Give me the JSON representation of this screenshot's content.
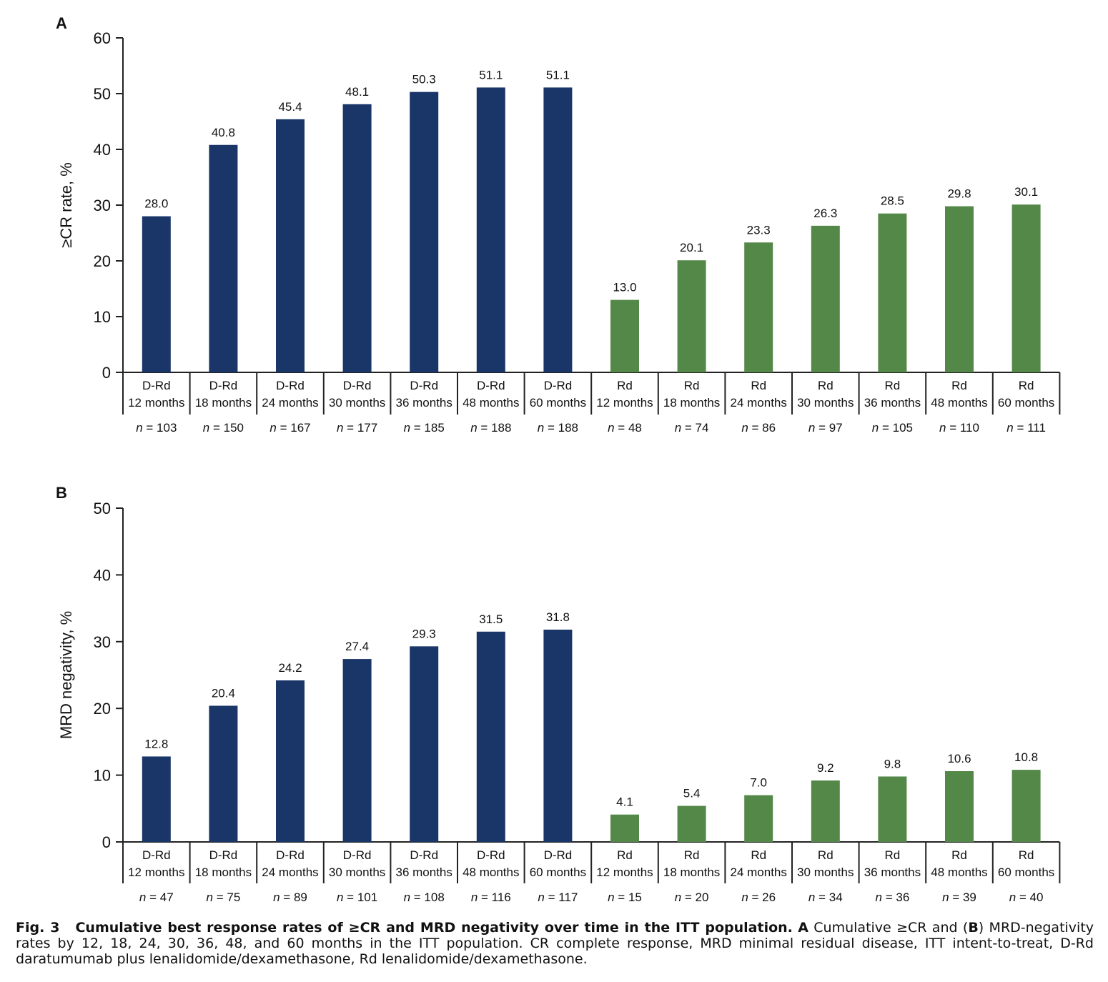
{
  "colors": {
    "drd": "#1a3668",
    "rd": "#548848",
    "axis": "#222222"
  },
  "chart_data": [
    {
      "panel": "A",
      "type": "bar",
      "ylabel": "≥CR rate, %",
      "ylim": [
        0,
        60
      ],
      "yticks": [
        0,
        10,
        20,
        30,
        40,
        50,
        60
      ],
      "categories": [
        {
          "group": "D-Rd",
          "time": "12 months",
          "n": "103",
          "value": 28.0,
          "label": "28.0"
        },
        {
          "group": "D-Rd",
          "time": "18 months",
          "n": "150",
          "value": 40.8,
          "label": "40.8"
        },
        {
          "group": "D-Rd",
          "time": "24 months",
          "n": "167",
          "value": 45.4,
          "label": "45.4"
        },
        {
          "group": "D-Rd",
          "time": "30 months",
          "n": "177",
          "value": 48.1,
          "label": "48.1"
        },
        {
          "group": "D-Rd",
          "time": "36 months",
          "n": "185",
          "value": 50.3,
          "label": "50.3"
        },
        {
          "group": "D-Rd",
          "time": "48 months",
          "n": "188",
          "value": 51.1,
          "label": "51.1"
        },
        {
          "group": "D-Rd",
          "time": "60 months",
          "n": "188",
          "value": 51.1,
          "label": "51.1"
        },
        {
          "group": "Rd",
          "time": "12 months",
          "n": "48",
          "value": 13.0,
          "label": "13.0"
        },
        {
          "group": "Rd",
          "time": "18 months",
          "n": "74",
          "value": 20.1,
          "label": "20.1"
        },
        {
          "group": "Rd",
          "time": "24 months",
          "n": "86",
          "value": 23.3,
          "label": "23.3"
        },
        {
          "group": "Rd",
          "time": "30 months",
          "n": "97",
          "value": 26.3,
          "label": "26.3"
        },
        {
          "group": "Rd",
          "time": "36 months",
          "n": "105",
          "value": 28.5,
          "label": "28.5"
        },
        {
          "group": "Rd",
          "time": "48 months",
          "n": "110",
          "value": 29.8,
          "label": "29.8"
        },
        {
          "group": "Rd",
          "time": "60 months",
          "n": "111",
          "value": 30.1,
          "label": "30.1"
        }
      ]
    },
    {
      "panel": "B",
      "type": "bar",
      "ylabel": "MRD negativity, %",
      "ylim": [
        0,
        50
      ],
      "yticks": [
        0,
        10,
        20,
        30,
        40,
        50
      ],
      "categories": [
        {
          "group": "D-Rd",
          "time": "12 months",
          "n": "47",
          "value": 12.8,
          "label": "12.8"
        },
        {
          "group": "D-Rd",
          "time": "18 months",
          "n": "75",
          "value": 20.4,
          "label": "20.4"
        },
        {
          "group": "D-Rd",
          "time": "24 months",
          "n": "89",
          "value": 24.2,
          "label": "24.2"
        },
        {
          "group": "D-Rd",
          "time": "30 months",
          "n": "101",
          "value": 27.4,
          "label": "27.4"
        },
        {
          "group": "D-Rd",
          "time": "36 months",
          "n": "108",
          "value": 29.3,
          "label": "29.3"
        },
        {
          "group": "D-Rd",
          "time": "48 months",
          "n": "116",
          "value": 31.5,
          "label": "31.5"
        },
        {
          "group": "D-Rd",
          "time": "60 months",
          "n": "117",
          "value": 31.8,
          "label": "31.8"
        },
        {
          "group": "Rd",
          "time": "12 months",
          "n": "15",
          "value": 4.1,
          "label": "4.1"
        },
        {
          "group": "Rd",
          "time": "18 months",
          "n": "20",
          "value": 5.4,
          "label": "5.4"
        },
        {
          "group": "Rd",
          "time": "24 months",
          "n": "26",
          "value": 7.0,
          "label": "7.0"
        },
        {
          "group": "Rd",
          "time": "30 months",
          "n": "34",
          "value": 9.2,
          "label": "9.2"
        },
        {
          "group": "Rd",
          "time": "36 months",
          "n": "36",
          "value": 9.8,
          "label": "9.8"
        },
        {
          "group": "Rd",
          "time": "48 months",
          "n": "39",
          "value": 10.6,
          "label": "10.6"
        },
        {
          "group": "Rd",
          "time": "60 months",
          "n": "40",
          "value": 10.8,
          "label": "10.8"
        }
      ]
    }
  ],
  "caption": {
    "fig_label": "Fig. 3",
    "title": "Cumulative best response rates of ≥CR and MRD negativity over time in the ITT population.",
    "a_letter": "A",
    "text1": " Cumulative ≥CR and (",
    "b_letter": "B",
    "text2": ") MRD-negativity rates by 12, 18, 24, 30, 36, 48, and 60 months in the ITT population. CR complete response, MRD minimal residual disease, ITT intent-to-treat, D-Rd daratumumab plus lenalidomide/dexamethasone, Rd lenalidomide/dexamethasone."
  }
}
